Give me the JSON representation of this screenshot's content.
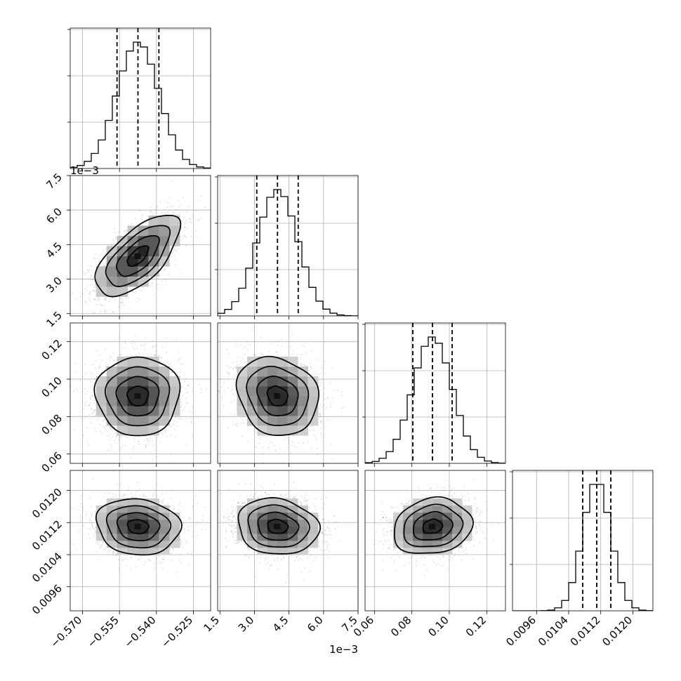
{
  "chart_data": {
    "type": "scatter",
    "subtype": "corner",
    "parameters": [
      {
        "index": 0,
        "mean": -0.5475,
        "std": 0.0085,
        "quantiles": [
          -0.556,
          -0.5475,
          -0.539
        ],
        "range": [
          -0.575,
          -0.518
        ],
        "ticks": [
          -0.57,
          -0.555,
          -0.54,
          -0.525
        ],
        "tick_labels": [
          "−0.570",
          "−0.555",
          "−0.540",
          "−0.525"
        ],
        "offset_label": ""
      },
      {
        "index": 1,
        "mean": 0.004,
        "std": 0.00088,
        "quantiles": [
          0.0031,
          0.004,
          0.0049
        ],
        "range": [
          0.0014,
          0.0075
        ],
        "ticks": [
          0.0015,
          0.003,
          0.0045,
          0.006,
          0.0075
        ],
        "tick_labels": [
          "1.5",
          "3.0",
          "4.5",
          "6.0",
          "7.5"
        ],
        "offset_label": "1e−3"
      },
      {
        "index": 2,
        "mean": 0.091,
        "std": 0.0105,
        "quantiles": [
          0.0805,
          0.091,
          0.1015
        ],
        "range": [
          0.055,
          0.13
        ],
        "ticks": [
          0.06,
          0.08,
          0.1,
          0.12
        ],
        "tick_labels": [
          "0.06",
          "0.08",
          "0.10",
          "0.12"
        ],
        "offset_label": ""
      },
      {
        "index": 3,
        "mean": 0.0111,
        "std": 0.00035,
        "quantiles": [
          0.01075,
          0.0111,
          0.01145
        ],
        "range": [
          0.009,
          0.0125
        ],
        "ticks": [
          0.0096,
          0.0104,
          0.0112,
          0.012
        ],
        "tick_labels": [
          "0.0096",
          "0.0104",
          "0.0112",
          "0.0120"
        ],
        "offset_label": ""
      }
    ],
    "correlations": [
      {
        "pair": [
          0,
          1
        ],
        "rho": 0.65
      },
      {
        "pair": [
          0,
          2
        ],
        "rho": 0.0
      },
      {
        "pair": [
          1,
          2
        ],
        "rho": -0.15
      },
      {
        "pair": [
          0,
          3
        ],
        "rho": -0.1
      },
      {
        "pair": [
          1,
          3
        ],
        "rho": -0.12
      },
      {
        "pair": [
          2,
          3
        ],
        "rho": 0.15
      }
    ],
    "histogram_bins": 20,
    "grid": true,
    "title": "",
    "xlabel": "",
    "ylabel": ""
  }
}
